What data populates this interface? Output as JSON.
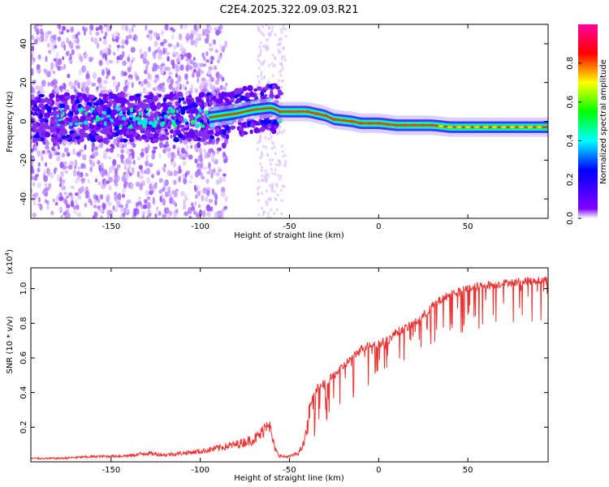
{
  "title": "C2E4.2025.322.09.03.R21",
  "chart_data": [
    {
      "type": "heatmap",
      "xlabel": "Height of straight line (km)",
      "ylabel": "Frequency (Hz)",
      "xlim": [
        -195,
        95
      ],
      "ylim": [
        -50,
        50
      ],
      "xticks": [
        -150,
        -100,
        -50,
        0,
        50
      ],
      "yticks": [
        -40,
        -20,
        0,
        20,
        40
      ],
      "colorbar": {
        "label": "Normalized spectral amplitude",
        "range": [
          0,
          1
        ],
        "ticks": [
          "0.0",
          "0.2",
          "0.4",
          "0.6",
          "0.8"
        ],
        "colors": [
          "#ffffff",
          "#7f00ff",
          "#0000ff",
          "#00ffff",
          "#00ff00",
          "#ffff00",
          "#ff0000",
          "#ff00a0"
        ]
      },
      "ridge": {
        "x": [
          -95,
          -80,
          -70,
          -60,
          -55,
          -45,
          -40,
          -30,
          -25,
          -15,
          -10,
          0,
          10,
          20,
          30,
          40,
          60,
          80,
          95
        ],
        "y": [
          2,
          4,
          6,
          7,
          5,
          5,
          5,
          3,
          1,
          0,
          -1,
          -1,
          -2,
          -2,
          -2,
          -3,
          -3,
          -3,
          -3
        ]
      }
    },
    {
      "type": "line",
      "xlabel": "Height of straight line (km)",
      "ylabel": "SNR (10 * v/v)",
      "yscale_label": "(x10",
      "yscale_exp": "4",
      "yscale_close": ")",
      "xlim": [
        -195,
        95
      ],
      "ylim": [
        0,
        1.12
      ],
      "xticks": [
        -150,
        -100,
        -50,
        0,
        50
      ],
      "yticks": [
        "0.2",
        "0.4",
        "0.6",
        "0.8",
        "1.0"
      ],
      "color": "#ee3333",
      "series": [
        {
          "name": "SNR",
          "x": [
            -195,
            -180,
            -160,
            -140,
            -130,
            -120,
            -110,
            -100,
            -90,
            -80,
            -70,
            -66,
            -64,
            -62,
            -60,
            -58,
            -56,
            -54,
            -50,
            -45,
            -42,
            -40,
            -38,
            -35,
            -30,
            -25,
            -20,
            -15,
            -10,
            -5,
            0,
            5,
            10,
            15,
            20,
            25,
            30,
            40,
            50,
            60,
            70,
            80,
            90,
            95
          ],
          "y": [
            0.02,
            0.02,
            0.03,
            0.035,
            0.05,
            0.04,
            0.05,
            0.06,
            0.08,
            0.1,
            0.13,
            0.16,
            0.2,
            0.25,
            0.15,
            0.07,
            0.04,
            0.03,
            0.03,
            0.05,
            0.1,
            0.2,
            0.35,
            0.42,
            0.45,
            0.5,
            0.55,
            0.6,
            0.65,
            0.68,
            0.68,
            0.7,
            0.75,
            0.77,
            0.8,
            0.84,
            0.9,
            0.97,
            1.0,
            1.02,
            1.03,
            1.04,
            1.05,
            1.05
          ]
        }
      ]
    }
  ]
}
